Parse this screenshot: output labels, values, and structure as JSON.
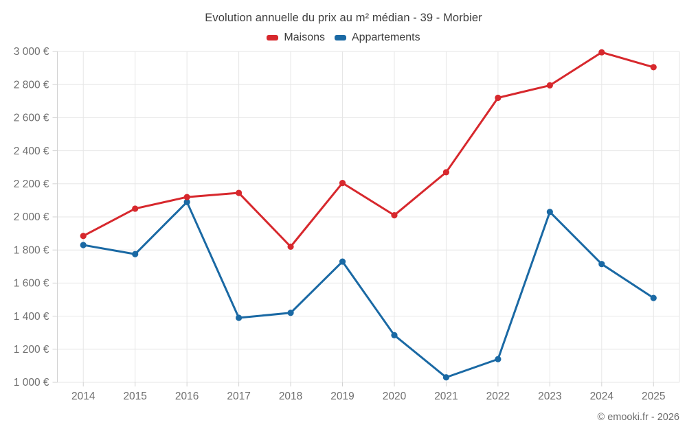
{
  "chart_data": {
    "type": "line",
    "title": "Evolution annuelle du prix au m² médian - 39 - Morbier",
    "categories": [
      "2014",
      "2015",
      "2016",
      "2017",
      "2018",
      "2019",
      "2020",
      "2021",
      "2022",
      "2023",
      "2024",
      "2025"
    ],
    "series": [
      {
        "name": "Maisons",
        "color": "#d7282d",
        "values": [
          1885,
          2050,
          2120,
          2145,
          1820,
          2205,
          2010,
          2270,
          2720,
          2795,
          2995,
          2905
        ]
      },
      {
        "name": "Appartements",
        "color": "#1a69a4",
        "values": [
          1830,
          1775,
          2090,
          1390,
          1420,
          1730,
          1285,
          1030,
          1140,
          2030,
          1715,
          1510
        ]
      }
    ],
    "xlabel": "",
    "ylabel": "",
    "ylim": [
      1000,
      3000
    ],
    "ytick_step": 200,
    "ytick_suffix": " €",
    "grid": true,
    "legend_position": "top",
    "copyright": "© emooki.fr - 2026",
    "colors": {
      "grid": "#e6e6e6",
      "axis": "#d2d2d2",
      "tick_text": "#6f6f6f",
      "title_text": "#3e3e3e",
      "background": "#ffffff"
    }
  }
}
